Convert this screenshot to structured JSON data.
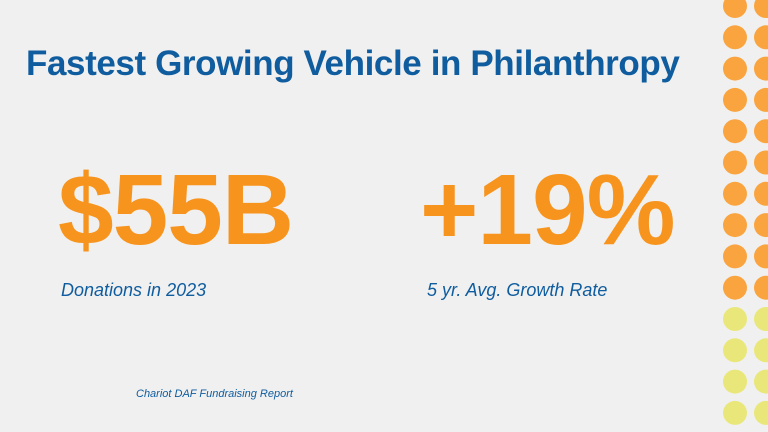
{
  "slide": {
    "title": "Fastest Growing Vehicle in Philanthropy",
    "stats": [
      {
        "value": "$55B",
        "label": "Donations in 2023"
      },
      {
        "value": "+19%",
        "label": "5 yr. Avg. Growth Rate"
      }
    ],
    "source": "Chariot DAF Fundraising Report"
  },
  "colors": {
    "background": "#f0f0f0",
    "title": "#0f5c9e",
    "stat_value": "#f7941d",
    "label": "#0f5c9e",
    "dot_orange": "#f9a43f",
    "dot_yellow": "#e9e77a"
  }
}
